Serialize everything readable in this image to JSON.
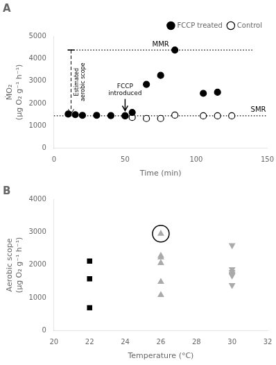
{
  "chart_data": [
    {
      "type": "scatter",
      "title": "A",
      "x_label": "Time (min)",
      "y_label": "ṀO₂\n(μg O₂ g⁻¹ h⁻¹)",
      "series": [
        {
          "name": "FCCP treated",
          "color": "black",
          "marker": "circle",
          "x": [
            10,
            15,
            20,
            30,
            40,
            50,
            55,
            65,
            75,
            85,
            105,
            115
          ],
          "values": [
            1530,
            1500,
            1470,
            1470,
            1460,
            1450,
            1600,
            2850,
            3250,
            4380,
            2450,
            2500
          ]
        },
        {
          "name": "Control",
          "color": "black",
          "marker": "open_circle",
          "x": [
            50,
            55,
            65,
            75,
            85,
            105,
            115,
            125
          ],
          "values": [
            1450,
            1380,
            1330,
            1330,
            1480,
            1450,
            1450,
            1450
          ]
        }
      ],
      "annotations": [
        {
          "type": "hline",
          "y": 1450,
          "label": "SMR",
          "line_style": "dotted"
        },
        {
          "type": "hline",
          "y": 4380,
          "x": [
            10,
            140
          ],
          "label": "MMR",
          "line_style": "dotted"
        },
        {
          "type": "vline",
          "x": 12,
          "y": [
            1530,
            4380
          ],
          "label": "Estimated\naerobic scope",
          "line_style": "dashed"
        },
        {
          "type": "arrow",
          "x": 50,
          "y": [
            2200,
            1680
          ],
          "label": "FCCP\nintroduced",
          "line_style": "solid"
        }
      ],
      "xlim": [
        0,
        150
      ],
      "xticks": [
        0,
        50,
        100,
        150
      ],
      "ylim": [
        0,
        5000
      ],
      "yticks": [
        0,
        1000,
        2000,
        3000,
        4000,
        5000
      ],
      "grid": false,
      "legend": "upper right"
    },
    {
      "type": "scatter",
      "title": "B",
      "x_label": "Temperature (°C)",
      "y_label": "Aerobic scope\n(μg O₂ g⁻¹ h⁻¹)",
      "series": [
        {
          "color": "black",
          "marker": "square",
          "x": [
            22,
            22,
            22
          ],
          "values": [
            2120,
            1580,
            700
          ]
        },
        {
          "color": "#aaaaaa",
          "marker": "triangle",
          "x": [
            26,
            26,
            26,
            26,
            26
          ],
          "values": [
            2280,
            2230,
            2060,
            1490,
            1090
          ]
        },
        {
          "color": "#aaaaaa",
          "marker": "triangle_circled",
          "x": [
            26
          ],
          "values": [
            2950
          ]
        },
        {
          "color": "#aaaaaa",
          "marker": "triangle_down",
          "x": [
            30,
            30,
            30,
            30,
            30,
            30,
            30
          ],
          "values": [
            2600,
            1870,
            1790,
            1740,
            1700,
            1680,
            1390
          ]
        }
      ],
      "xlim": [
        20,
        32
      ],
      "xticks": [
        20,
        22,
        24,
        26,
        28,
        30,
        32
      ],
      "ylim": [
        0,
        4000
      ],
      "yticks": [
        0,
        1000,
        2000,
        3000,
        4000
      ],
      "grid": false
    }
  ]
}
